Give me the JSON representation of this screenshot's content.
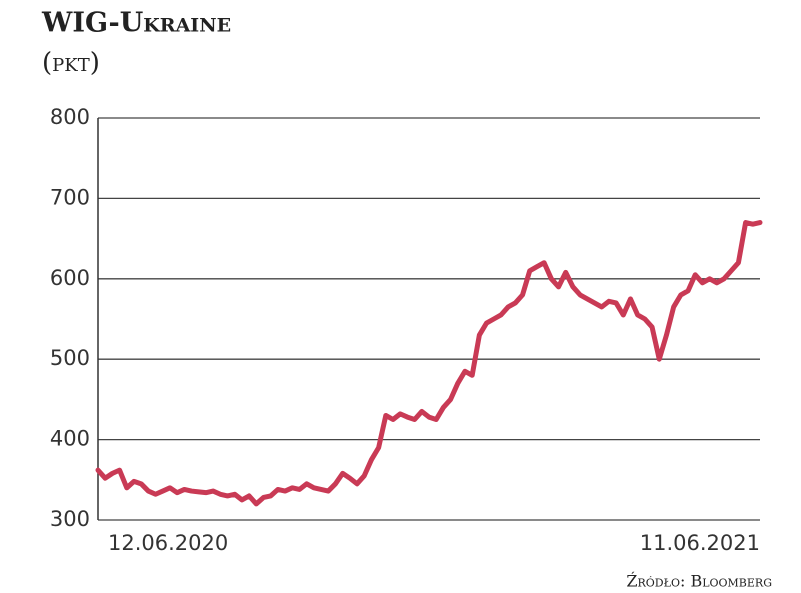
{
  "chart_data": {
    "type": "line",
    "title": "WIG-Ukraine",
    "subtitle": "(pkt)",
    "source": "Źródło: Bloomberg",
    "categories": [
      "12.06.2020",
      null,
      null,
      null,
      null,
      null,
      null,
      null,
      null,
      null,
      null,
      null,
      null,
      null,
      null,
      null,
      null,
      null,
      null,
      null,
      null,
      null,
      null,
      null,
      null,
      null,
      null,
      null,
      null,
      null,
      null,
      null,
      null,
      null,
      null,
      null,
      null,
      null,
      null,
      null,
      null,
      null,
      null,
      null,
      null,
      null,
      null,
      null,
      null,
      null,
      null,
      null,
      null,
      null,
      null,
      null,
      null,
      null,
      null,
      null,
      null,
      null,
      null,
      null,
      null,
      null,
      null,
      null,
      null,
      null,
      null,
      null,
      null,
      null,
      null,
      null,
      null,
      null,
      null,
      null,
      null,
      null,
      null,
      null,
      null,
      null,
      null,
      null,
      null,
      null,
      null,
      null,
      "11.06.2021"
    ],
    "values": [
      362,
      352,
      358,
      362,
      340,
      348,
      345,
      336,
      332,
      336,
      340,
      334,
      338,
      336,
      335,
      334,
      336,
      332,
      330,
      332,
      325,
      330,
      320,
      328,
      330,
      338,
      336,
      340,
      338,
      345,
      340,
      338,
      336,
      345,
      358,
      352,
      345,
      355,
      375,
      390,
      430,
      425,
      432,
      428,
      425,
      435,
      428,
      425,
      440,
      450,
      470,
      485,
      480,
      530,
      545,
      550,
      555,
      565,
      570,
      580,
      610,
      615,
      620,
      600,
      590,
      608,
      590,
      580,
      575,
      570,
      565,
      572,
      570,
      555,
      575,
      555,
      550,
      540,
      500,
      530,
      565,
      580,
      585,
      605,
      595,
      600,
      595,
      600,
      610,
      620,
      670,
      668,
      670
    ],
    "color": "#c93a55",
    "ylim": [
      300,
      800
    ],
    "yticks": [
      300,
      400,
      500,
      600,
      700,
      800
    ],
    "grid": true
  }
}
